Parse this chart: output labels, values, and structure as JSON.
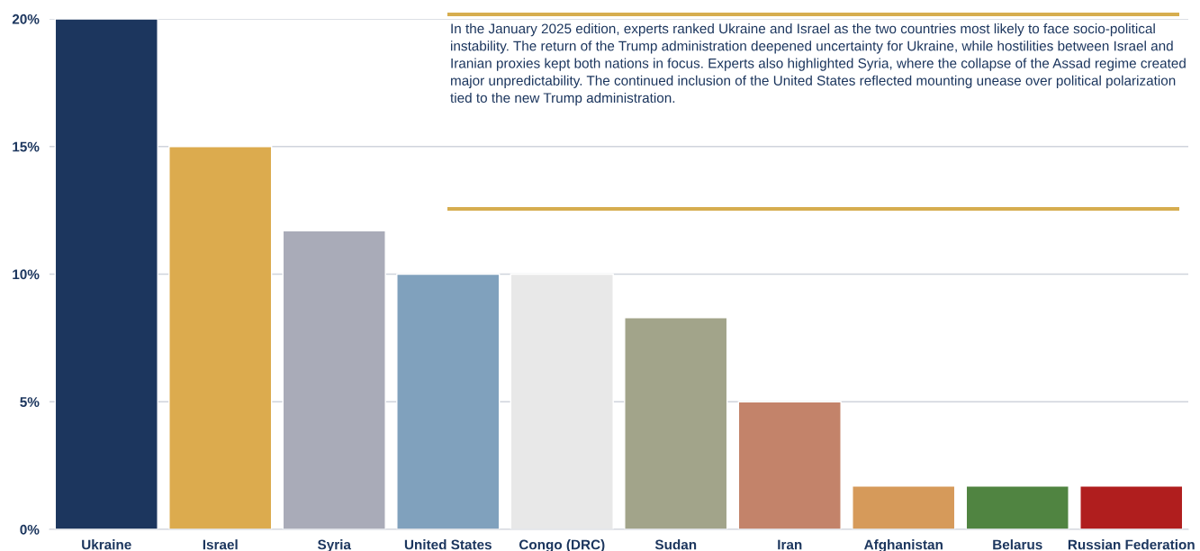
{
  "chart_data": {
    "type": "bar",
    "categories": [
      "Ukraine",
      "Israel",
      "Syria",
      "United States",
      "Congo (DRC)",
      "Sudan",
      "Iran",
      "Afghanistan",
      "Belarus",
      "Russian Federation"
    ],
    "values": [
      20,
      15,
      11.7,
      10,
      10,
      8.3,
      5,
      1.7,
      1.7,
      1.7
    ],
    "colors": [
      "#1c365e",
      "#dcab4e",
      "#a9abb8",
      "#80a1bd",
      "#e8e8e8",
      "#a2a48a",
      "#c3836a",
      "#d69a5a",
      "#508441",
      "#b01e1e"
    ],
    "ylim": [
      0,
      20
    ],
    "yticks": [
      {
        "value": 0,
        "label": "0%"
      },
      {
        "value": 5,
        "label": "5%"
      },
      {
        "value": 10,
        "label": "10%"
      },
      {
        "value": 15,
        "label": "15%"
      },
      {
        "value": 20,
        "label": "20%"
      }
    ],
    "grid": "y",
    "legend": false,
    "annotations": [
      "In the January 2025 edition, experts ranked Ukraine and Israel as the two countries most likely to face socio-political instability. The return of the Trump administration deepened uncertainty for Ukraine, while hostilities between Israel and Iranian proxies kept both nations in focus. Experts also highlighted Syria, where the collapse of the Assad regime created major unpredictability. The continued inclusion of the United States reflected mounting unease over political polarization tied to the new Trump administration."
    ]
  }
}
